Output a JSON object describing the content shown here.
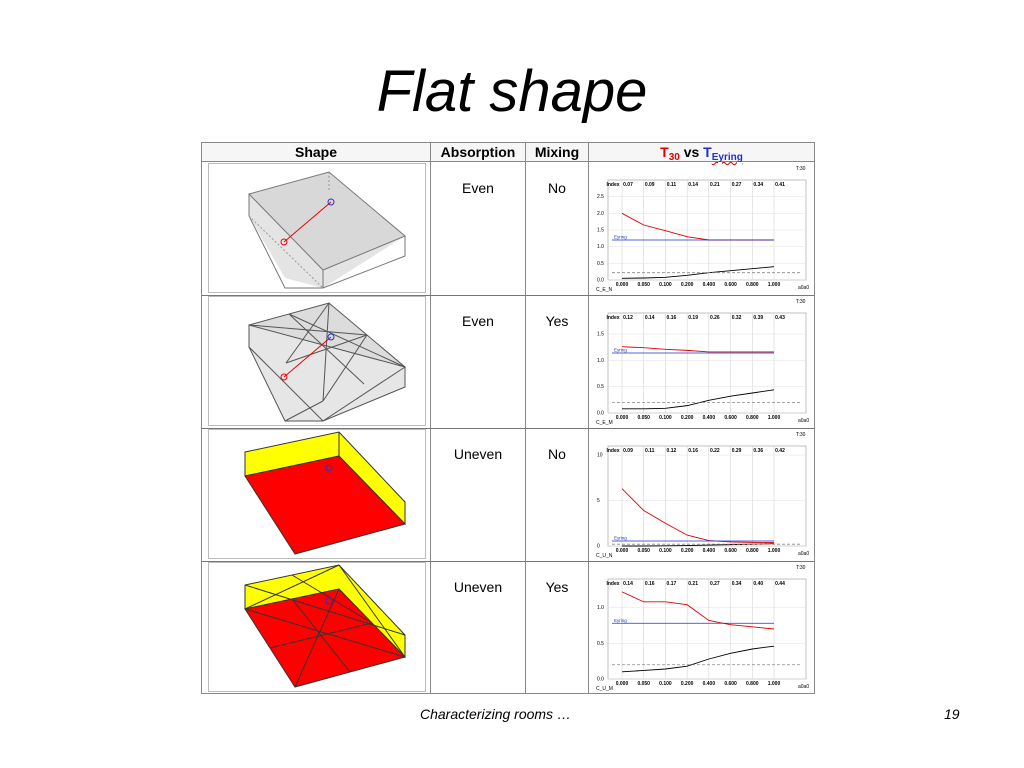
{
  "slide": {
    "title": "Flat shape",
    "footer_text": "Characterizing rooms …",
    "page_number": "19"
  },
  "table": {
    "headers": {
      "shape": "Shape",
      "absorption": "Absorption",
      "mixing": "Mixing",
      "t_main": "T",
      "t_sub": "30",
      "vs": "vs",
      "e_main": "T",
      "e_sub": "Eyring"
    },
    "rows": [
      {
        "absorption": "Even",
        "mixing": "No"
      },
      {
        "absorption": "Even",
        "mixing": "Yes"
      },
      {
        "absorption": "Uneven",
        "mixing": "No"
      },
      {
        "absorption": "Uneven",
        "mixing": "Yes"
      }
    ]
  },
  "colors": {
    "t30": "#e00000",
    "eyring": "#1f2fd0",
    "absorber_floor": "#ff0000",
    "absorber_walls": "#ffff00"
  },
  "chart_data": [
    {
      "type": "line",
      "id": "C_E_N",
      "x": [
        "0.000",
        "0.050",
        "0.100",
        "0.200",
        "0.400",
        "0.600",
        "0.800",
        "1.000"
      ],
      "index": [
        "Index",
        "0.07",
        "0.09",
        "0.11",
        "0.14",
        "0.21",
        "0.27",
        "0.34",
        "0.41"
      ],
      "yticks": [
        "2.5",
        "2.0",
        "1.5",
        "1.0",
        "0.5",
        "0.0"
      ],
      "ylim": [
        0,
        3.0
      ],
      "corner_label": "T:30",
      "x_unit": "a0a0",
      "series": [
        {
          "name": "",
          "color": "#e00000",
          "values": [
            2.0,
            1.65,
            1.48,
            1.3,
            1.2,
            1.2,
            1.2,
            1.2
          ]
        },
        {
          "name": "Eyring",
          "color": "#1f2fd0",
          "values": [
            1.2,
            1.2,
            1.2,
            1.2,
            1.2,
            1.2,
            1.2,
            1.2
          ]
        },
        {
          "name": "",
          "color": "#000000",
          "values": [
            0.05,
            0.06,
            0.08,
            0.14,
            0.22,
            0.28,
            0.34,
            0.4
          ]
        },
        {
          "name": "",
          "color": "#888888",
          "dashed": true,
          "values": [
            0.22,
            0.22,
            0.22,
            0.22,
            0.22,
            0.22,
            0.22,
            0.22
          ]
        }
      ]
    },
    {
      "type": "line",
      "id": "C_E_M",
      "x": [
        "0.000",
        "0.050",
        "0.100",
        "0.200",
        "0.400",
        "0.600",
        "0.800",
        "1.000"
      ],
      "index": [
        "Index",
        "0.12",
        "0.14",
        "0.16",
        "0.19",
        "0.26",
        "0.32",
        "0.39",
        "0.43"
      ],
      "yticks": [
        "1.5",
        "1.0",
        "0.5",
        "0.0"
      ],
      "ylim": [
        0,
        1.9
      ],
      "corner_label": "T:30",
      "x_unit": "a0a0",
      "series": [
        {
          "name": "",
          "color": "#e00000",
          "values": [
            1.26,
            1.24,
            1.21,
            1.19,
            1.16,
            1.16,
            1.16,
            1.16
          ]
        },
        {
          "name": "Eyring",
          "color": "#1f2fd0",
          "values": [
            1.14,
            1.14,
            1.14,
            1.14,
            1.14,
            1.14,
            1.14,
            1.14
          ]
        },
        {
          "name": "",
          "color": "#000000",
          "values": [
            0.08,
            0.08,
            0.09,
            0.14,
            0.24,
            0.32,
            0.38,
            0.44
          ]
        },
        {
          "name": "",
          "color": "#888888",
          "dashed": true,
          "values": [
            0.2,
            0.2,
            0.2,
            0.2,
            0.2,
            0.2,
            0.2,
            0.2
          ]
        }
      ]
    },
    {
      "type": "line",
      "id": "C_U_N",
      "x": [
        "0.000",
        "0.050",
        "0.100",
        "0.200",
        "0.400",
        "0.600",
        "0.800",
        "1.000"
      ],
      "index": [
        "Index",
        "0.09",
        "0.11",
        "0.12",
        "0.16",
        "0.22",
        "0.29",
        "0.36",
        "0.42"
      ],
      "yticks": [
        "10",
        "5",
        "0"
      ],
      "ylim": [
        0,
        11
      ],
      "corner_label": "T:30",
      "x_unit": "a0a0",
      "series": [
        {
          "name": "",
          "color": "#e00000",
          "values": [
            6.3,
            3.9,
            2.5,
            1.2,
            0.6,
            0.45,
            0.4,
            0.38
          ]
        },
        {
          "name": "Eyring",
          "color": "#1f2fd0",
          "values": [
            0.55,
            0.55,
            0.55,
            0.55,
            0.55,
            0.55,
            0.55,
            0.55
          ]
        },
        {
          "name": "",
          "color": "#000000",
          "values": [
            0.0,
            0.0,
            0.02,
            0.05,
            0.1,
            0.15,
            0.2,
            0.25
          ]
        },
        {
          "name": "",
          "color": "#888888",
          "dashed": true,
          "values": [
            0.2,
            0.2,
            0.2,
            0.2,
            0.2,
            0.2,
            0.2,
            0.2
          ]
        }
      ]
    },
    {
      "type": "line",
      "id": "C_U_M",
      "x": [
        "0.000",
        "0.050",
        "0.100",
        "0.200",
        "0.400",
        "0.600",
        "0.800",
        "1.000"
      ],
      "index": [
        "Index",
        "0.14",
        "0.16",
        "0.17",
        "0.21",
        "0.27",
        "0.34",
        "0.40",
        "0.44"
      ],
      "yticks": [
        "1.0",
        "0.5",
        "0.0"
      ],
      "ylim": [
        0,
        1.4
      ],
      "corner_label": "T:30",
      "x_unit": "a0a0",
      "series": [
        {
          "name": "",
          "color": "#e00000",
          "values": [
            1.22,
            1.08,
            1.08,
            1.04,
            0.82,
            0.76,
            0.73,
            0.7
          ]
        },
        {
          "name": "Eyring",
          "color": "#1f2fd0",
          "values": [
            0.78,
            0.78,
            0.78,
            0.78,
            0.78,
            0.78,
            0.78,
            0.78
          ]
        },
        {
          "name": "",
          "color": "#000000",
          "values": [
            0.1,
            0.12,
            0.14,
            0.18,
            0.28,
            0.36,
            0.42,
            0.46
          ]
        },
        {
          "name": "",
          "color": "#888888",
          "dashed": true,
          "values": [
            0.2,
            0.2,
            0.2,
            0.2,
            0.2,
            0.2,
            0.2,
            0.2
          ]
        }
      ]
    }
  ]
}
